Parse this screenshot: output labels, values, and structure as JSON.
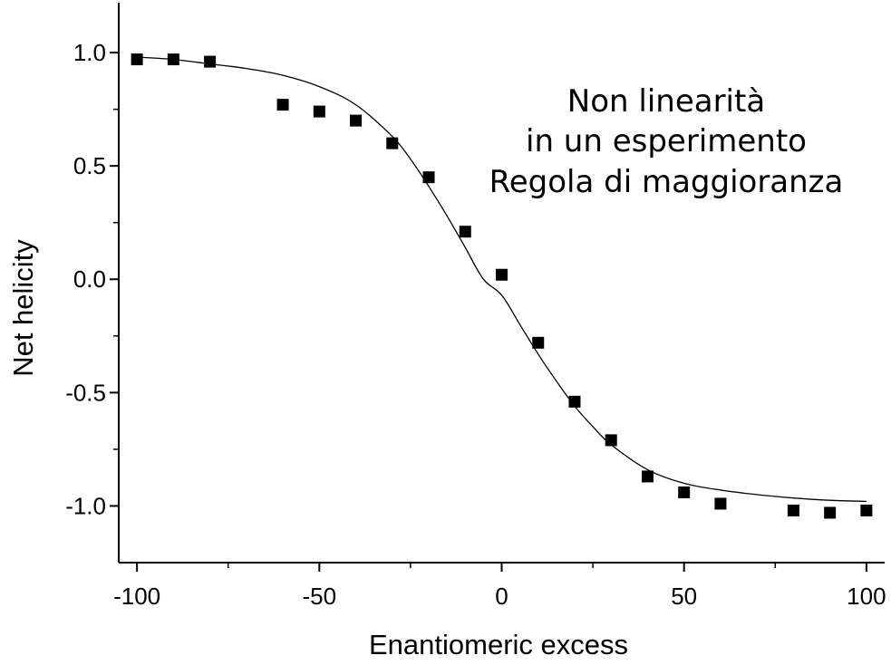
{
  "chart_data": {
    "type": "scatter",
    "title": "",
    "xlabel": "Enantiomeric excess",
    "ylabel": "Net helicity",
    "xlim": [
      -105,
      105
    ],
    "ylim": [
      -1.25,
      1.22
    ],
    "xticks": [
      -100,
      -50,
      0,
      50,
      100
    ],
    "xtick_labels": [
      "-100",
      "-50",
      "0",
      "50",
      "100"
    ],
    "yticks": [
      1.0,
      0.5,
      0.0,
      -0.5,
      -1.0
    ],
    "ytick_labels": [
      "1.0",
      "0.5",
      "0.0",
      "-0.5",
      "-1.0"
    ],
    "grid": false,
    "legend": "none",
    "annotation": [
      "Non linearità",
      "in un esperimento",
      "Regola di maggioranza"
    ],
    "marker_color": "#000000",
    "series": [
      {
        "kind": "points",
        "marker": "square",
        "x": [
          -100,
          -90,
          -80,
          -60,
          -50,
          -40,
          -30,
          -20,
          -10,
          0,
          10,
          20,
          30,
          40,
          50,
          60,
          80,
          90,
          100
        ],
        "y": [
          0.97,
          0.97,
          0.96,
          0.77,
          0.74,
          0.7,
          0.6,
          0.45,
          0.21,
          0.02,
          -0.28,
          -0.54,
          -0.71,
          -0.87,
          -0.94,
          -0.99,
          -1.02,
          -1.03,
          -1.02
        ]
      },
      {
        "kind": "line",
        "x": [
          -100,
          -90,
          -80,
          -70,
          -60,
          -50,
          -40,
          -30,
          -25,
          -20,
          -15,
          -10,
          -5,
          0,
          5,
          10,
          15,
          20,
          25,
          30,
          40,
          50,
          60,
          70,
          80,
          90,
          100
        ],
        "y": [
          0.98,
          0.97,
          0.95,
          0.93,
          0.9,
          0.85,
          0.77,
          0.63,
          0.53,
          0.41,
          0.28,
          0.14,
          0.0,
          -0.07,
          -0.2,
          -0.33,
          -0.45,
          -0.56,
          -0.65,
          -0.73,
          -0.84,
          -0.9,
          -0.93,
          -0.95,
          -0.965,
          -0.975,
          -0.98
        ]
      }
    ]
  }
}
